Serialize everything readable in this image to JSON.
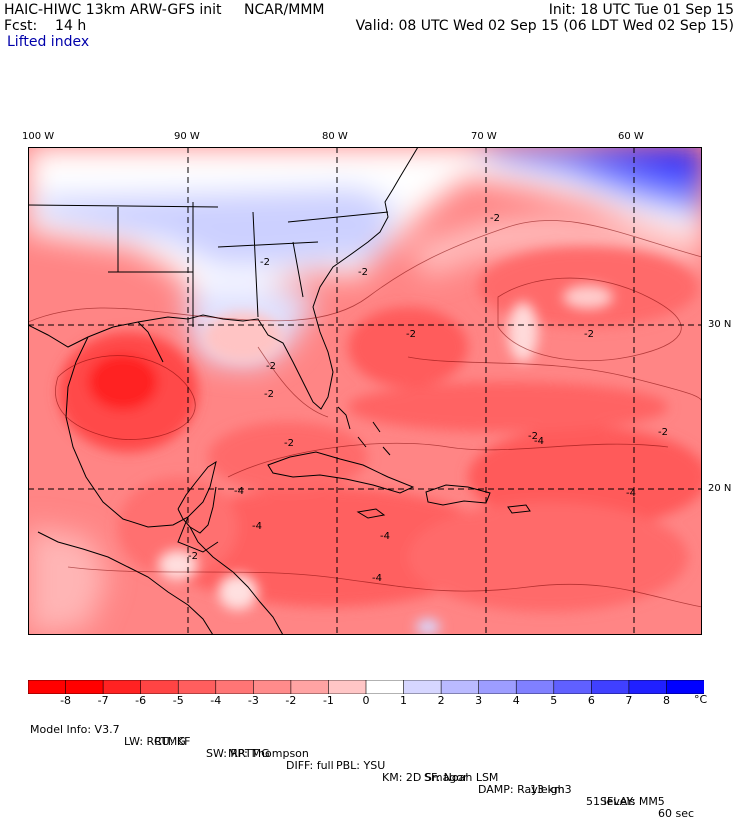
{
  "header": {
    "model": "HAIC-HIWC 13km ARW-GFS init",
    "org": "NCAR/MMM",
    "init": "Init: 18 UTC Tue 01 Sep 15",
    "fcst": "Fcst:    14 h",
    "valid": "Valid: 08 UTC Wed 02 Sep 15 (06 LDT Wed 02 Sep 15)"
  },
  "field": "Lifted index",
  "axes": {
    "lon_labels": [
      "100 W",
      "90 W",
      "80 W",
      "70 W",
      "60 W"
    ],
    "lat_labels": [
      "30 N",
      "20 N"
    ]
  },
  "contour_labels": [
    "-2",
    "-2",
    "-2",
    "-2",
    "-2",
    "-2",
    "-2",
    "-2",
    "-2",
    "-4",
    "-4",
    "-4",
    "-4",
    "-4",
    "-4",
    "-2",
    "-2"
  ],
  "colorbar": {
    "ticks": [
      "-8",
      "-7",
      "-6",
      "-5",
      "-4",
      "-3",
      "-2",
      "-1",
      "0",
      "1",
      "2",
      "3",
      "4",
      "5",
      "6",
      "7",
      "8"
    ],
    "unit": "°C",
    "colors": [
      "#ff0000",
      "#ff2222",
      "#ff4444",
      "#ff5e5e",
      "#ff7575",
      "#ff8b8b",
      "#ffa3a3",
      "#ffc6c6",
      "#ffffff",
      "#d6d6ff",
      "#babaff",
      "#9d9dff",
      "#8080ff",
      "#6060ff",
      "#4040ff",
      "#2020ff",
      "#0000ff"
    ]
  },
  "footer": {
    "line1": [
      "Model Info: V3.7",
      "CU: KF",
      "MP: Thompson",
      "PBL: YSU",
      "SF: Noah LSM",
      "13 km",
      "51 levels",
      "60 sec"
    ],
    "line2": [
      "LW: RRTMG",
      "SW: RRTMG",
      "DIFF: full",
      "KM: 2D Smagor",
      "DAMP: Rayleigh3",
      "SFLAY: MM5"
    ]
  }
}
